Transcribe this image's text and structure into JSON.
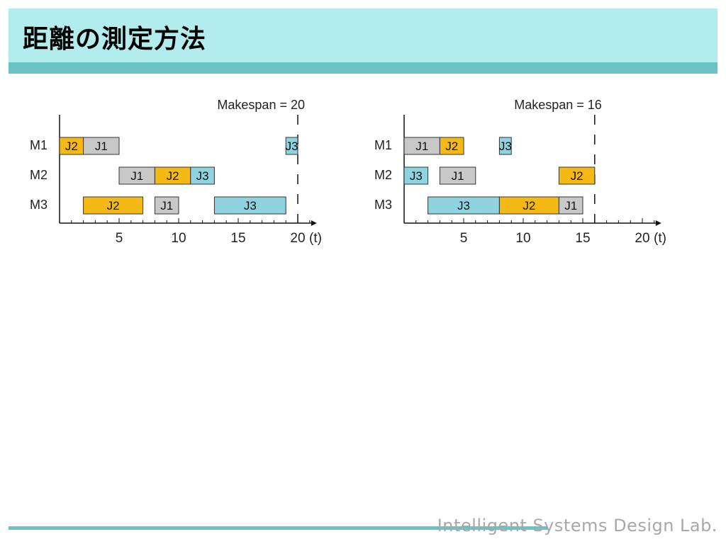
{
  "slide": {
    "title": "距離の測定方法",
    "footer": "Intelligent Systems Design Lab."
  },
  "colors": {
    "J1": "#c8c8c8",
    "J2": "#f5b915",
    "J3": "#8ed3df",
    "title_bg": "#b2ecec",
    "accent": "#6cc3c3"
  },
  "chart_data": [
    {
      "type": "gantt",
      "title": "Makespan = 20",
      "makespan": 20,
      "rows": [
        "M1",
        "M2",
        "M3"
      ],
      "x_ticks": [
        5,
        10,
        15,
        20
      ],
      "x_unit": "(t)",
      "xlim": [
        0,
        21
      ],
      "tasks": [
        {
          "machine": "M1",
          "job": "J2",
          "start": 0,
          "end": 2
        },
        {
          "machine": "M1",
          "job": "J1",
          "start": 2,
          "end": 5
        },
        {
          "machine": "M1",
          "job": "J3",
          "start": 19,
          "end": 20
        },
        {
          "machine": "M2",
          "job": "J1",
          "start": 5,
          "end": 8
        },
        {
          "machine": "M2",
          "job": "J2",
          "start": 8,
          "end": 11
        },
        {
          "machine": "M2",
          "job": "J3",
          "start": 11,
          "end": 13
        },
        {
          "machine": "M3",
          "job": "J2",
          "start": 2,
          "end": 7
        },
        {
          "machine": "M3",
          "job": "J1",
          "start": 8,
          "end": 10
        },
        {
          "machine": "M3",
          "job": "J3",
          "start": 13,
          "end": 19
        }
      ]
    },
    {
      "type": "gantt",
      "title": "Makespan = 16",
      "makespan": 16,
      "rows": [
        "M1",
        "M2",
        "M3"
      ],
      "x_ticks": [
        5,
        10,
        15,
        20
      ],
      "x_unit": "(t)",
      "xlim": [
        0,
        21
      ],
      "tasks": [
        {
          "machine": "M1",
          "job": "J1",
          "start": 0,
          "end": 3
        },
        {
          "machine": "M1",
          "job": "J2",
          "start": 3,
          "end": 5
        },
        {
          "machine": "M1",
          "job": "J3",
          "start": 8,
          "end": 9
        },
        {
          "machine": "M2",
          "job": "J3",
          "start": 0,
          "end": 2
        },
        {
          "machine": "M2",
          "job": "J1",
          "start": 3,
          "end": 6
        },
        {
          "machine": "M2",
          "job": "J2",
          "start": 13,
          "end": 16
        },
        {
          "machine": "M3",
          "job": "J3",
          "start": 2,
          "end": 8
        },
        {
          "machine": "M3",
          "job": "J2",
          "start": 8,
          "end": 13
        },
        {
          "machine": "M3",
          "job": "J1",
          "start": 13,
          "end": 15
        }
      ]
    }
  ]
}
